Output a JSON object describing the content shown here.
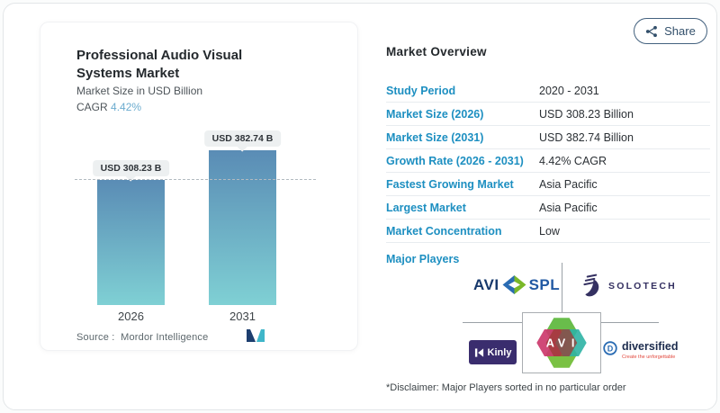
{
  "header": {
    "share_label": "Share"
  },
  "snapshot": {
    "title": "Professional Audio Visual Systems Market",
    "subtitle": "Market Size in USD Billion",
    "cagr_label": "CAGR",
    "cagr_value": "4.42%",
    "source_label": "Source :",
    "source_name": "Mordor Intelligence"
  },
  "chart_data": {
    "type": "bar",
    "categories": [
      "2026",
      "2031"
    ],
    "values": [
      308.23,
      382.74
    ],
    "bar_labels": [
      "USD 308.23 B",
      "USD 382.74 B"
    ],
    "title": "Professional Audio Visual Systems Market",
    "ylabel": "Market Size in USD Billion",
    "ylim": [
      0,
      420
    ],
    "grid": false,
    "reference_line_value": 308.23,
    "bar_color_top": "#5a8cb5",
    "bar_color_bottom": "#7fd0d4"
  },
  "overview": {
    "heading": "Market Overview",
    "rows": [
      {
        "label": "Study Period",
        "value": "2020 - 2031"
      },
      {
        "label": "Market Size (2026)",
        "value": "USD 308.23 Billion"
      },
      {
        "label": "Market Size (2031)",
        "value": "USD 382.74 Billion"
      },
      {
        "label": "Growth Rate (2026 - 2031)",
        "value": "4.42% CAGR"
      },
      {
        "label": "Fastest Growing Market",
        "value": "Asia Pacific"
      },
      {
        "label": "Largest Market",
        "value": "Asia Pacific"
      },
      {
        "label": "Market Concentration",
        "value": "Low"
      }
    ],
    "major_players_label": "Major Players",
    "disclaimer": "*Disclaimer: Major Players sorted in no particular order"
  },
  "players_logos": {
    "avispl": {
      "part1": "AVI",
      "part2": "SPL"
    },
    "solotech": {
      "text": "SOLOTECH"
    },
    "kinly": {
      "text": "Kinly"
    },
    "avi": {
      "letters": [
        "A",
        "V",
        "I"
      ]
    },
    "diversified": {
      "text": "diversified",
      "tagline": "Create the unforgettable"
    }
  },
  "colors": {
    "accent_label_blue": "#1d8fc1",
    "cagr_blue": "#6caccf",
    "share_border": "#44627f",
    "connector_gray": "#9aa1a6"
  }
}
